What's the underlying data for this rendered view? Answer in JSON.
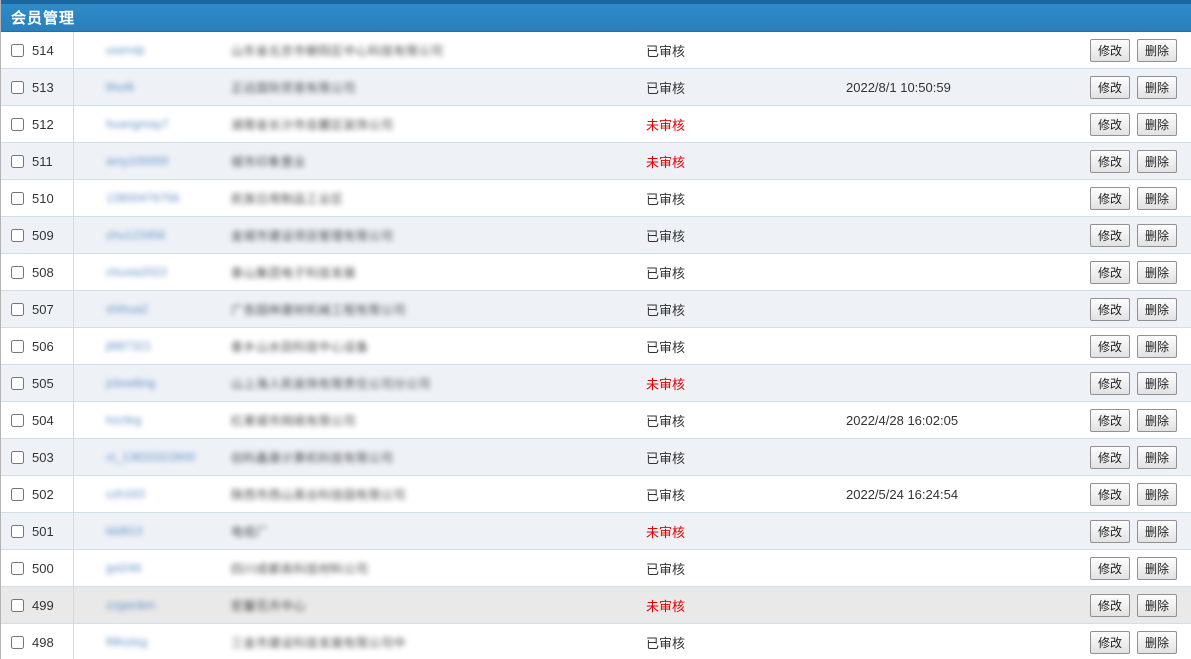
{
  "header": {
    "title": "会员管理"
  },
  "actions": {
    "edit_label": "修改",
    "delete_label": "删除"
  },
  "status_colors": {
    "已审核": "#333333",
    "未审核": "#e60000"
  },
  "colors": {
    "header_bar": "#2a84c4",
    "header_top_strip": "#1a679f",
    "row_alt_bg": "#eef2f7",
    "row_highlight_bg": "#e9e9e9",
    "row_separator": "#cfdfec",
    "link_blue": "#4a7ebb",
    "status_red": "#e60000"
  },
  "rows": [
    {
      "id": "514",
      "username_blurred": "uservip",
      "description_blurred": "山东省北京市朝阳区中心科技有限公司",
      "status": "已审核",
      "time": "",
      "checked": false,
      "highlight": false
    },
    {
      "id": "513",
      "username_blurred": "lihui8",
      "description_blurred": "正远国际贸易有限公司",
      "status": "已审核",
      "time": "2022/8/1 10:50:59",
      "checked": false,
      "highlight": false
    },
    {
      "id": "512",
      "username_blurred": "huangmay7",
      "description_blurred": "湖南省长沙市岳麓区装饰公司",
      "status": "未审核",
      "time": "",
      "checked": false,
      "highlight": false
    },
    {
      "id": "511",
      "username_blurred": "amy100000",
      "description_blurred": "城市印象置业",
      "status": "未审核",
      "time": "",
      "checked": false,
      "highlight": false
    },
    {
      "id": "510",
      "username_blurred": "13800476756",
      "description_blurred": "民族日用制品工业区",
      "status": "已审核",
      "time": "",
      "checked": false,
      "highlight": false
    },
    {
      "id": "509",
      "username_blurred": "zhu123456",
      "description_blurred": "金城市建设项目管理有限公司",
      "status": "已审核",
      "time": "",
      "checked": false,
      "highlight": false
    },
    {
      "id": "508",
      "username_blurred": "chuxia2022",
      "description_blurred": "泰山集团电子科技发展",
      "status": "已审核",
      "time": "",
      "checked": false,
      "highlight": false
    },
    {
      "id": "507",
      "username_blurred": "shihua2",
      "description_blurred": "广告园林建材机械工程有限公司",
      "status": "已审核",
      "time": "",
      "checked": false,
      "highlight": false
    },
    {
      "id": "506",
      "username_blurred": "jl887321",
      "description_blurred": "泰乡山水田科技中心设备",
      "status": "已审核",
      "time": "",
      "checked": false,
      "highlight": false
    },
    {
      "id": "505",
      "username_blurred": "jcbselling",
      "description_blurred": "山上海人民装饰有限责任公司分公司",
      "status": "未审核",
      "time": "",
      "checked": false,
      "highlight": false
    },
    {
      "id": "504",
      "username_blurred": "hzcfeg",
      "description_blurred": "红果城市网络有限公司",
      "status": "已审核",
      "time": "2022/4/28 16:02:05",
      "checked": false,
      "highlight": false
    },
    {
      "id": "503",
      "username_blurred": "ct_13633322600",
      "description_blurred": "创科鑫晟计算机科技有限公司",
      "status": "已审核",
      "time": "",
      "checked": false,
      "highlight": false
    },
    {
      "id": "502",
      "username_blurred": "czh163",
      "description_blurred": "陕西市西山英谷科技园有限公司",
      "status": "已审核",
      "time": "2022/5/24 16:24:54",
      "checked": false,
      "highlight": false
    },
    {
      "id": "501",
      "username_blurred": "ldd913",
      "description_blurred": "电缆厂",
      "status": "未审核",
      "time": "",
      "checked": false,
      "highlight": false
    },
    {
      "id": "500",
      "username_blurred": "gsl246",
      "description_blurred": "四川成都高科技材料公司",
      "status": "已审核",
      "time": "",
      "checked": false,
      "highlight": false
    },
    {
      "id": "499",
      "username_blurred": "zzgarden",
      "description_blurred": "宏馨花卉中心",
      "status": "未审核",
      "time": "",
      "checked": false,
      "highlight": true
    },
    {
      "id": "498",
      "username_blurred": "fl9hztsg",
      "description_blurred": "三金市建设科技发展有限公司中",
      "status": "已审核",
      "time": "",
      "checked": false,
      "highlight": false
    }
  ]
}
